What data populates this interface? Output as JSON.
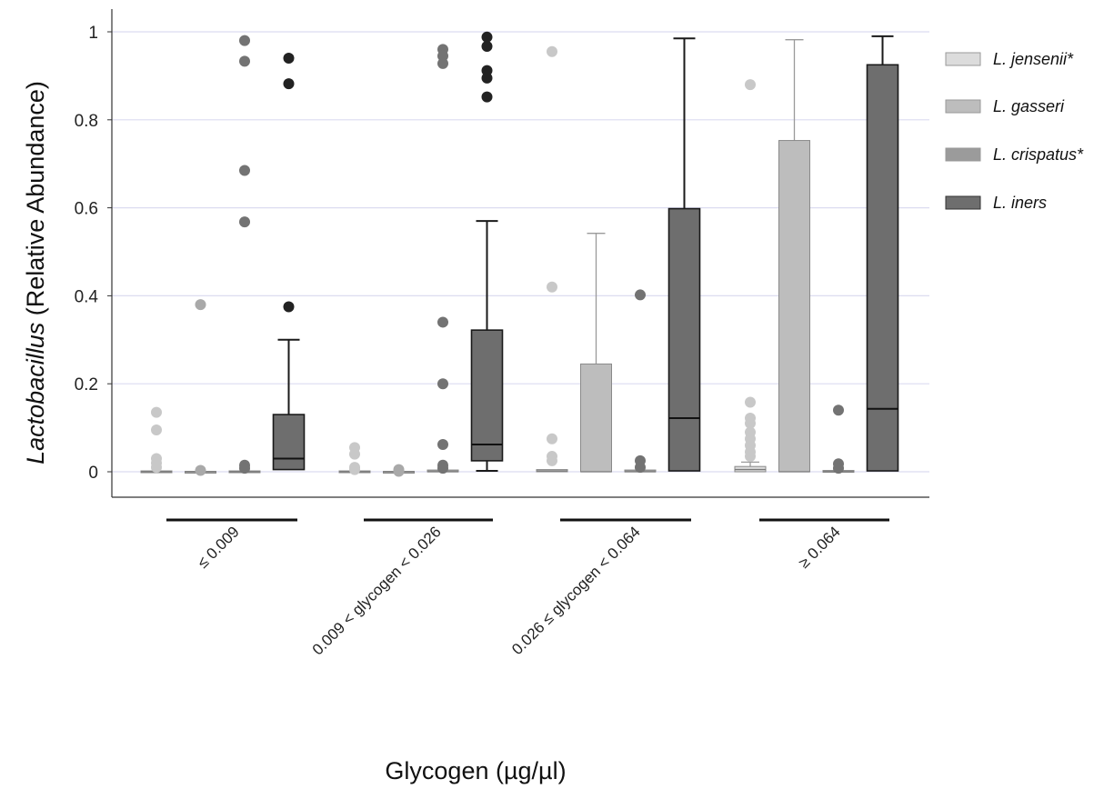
{
  "chart_data": {
    "type": "box",
    "ylabel_italic": "Lactobacillus",
    "ylabel_rest": " (Relative Abundance)",
    "xlabel": "Glycogen (µg/µl)",
    "ylim": [
      -0.05,
      1.05
    ],
    "yticks": [
      0,
      0.2,
      0.4,
      0.6,
      0.8,
      1
    ],
    "ytick_labels": [
      "0",
      "0.2",
      "0.4",
      "0.6",
      "0.8",
      "1"
    ],
    "grid": true,
    "legend_position": "right",
    "categories": [
      "≤ 0.009",
      "0.009 < glycogen < 0.026",
      "0.026 ≤ glycogen < 0.064",
      "≥ 0.064"
    ],
    "series": [
      {
        "name": "L. jensenii*",
        "color": "#dcdcdc",
        "outlier_color": "#c8c8c8",
        "boxes": [
          {
            "q1": 0,
            "median": 0,
            "q3": 0.002,
            "wlo": 0,
            "whi": 0.002,
            "outliers": [
              0.135,
              0.095,
              0.03,
              0.02,
              0.01
            ]
          },
          {
            "q1": 0,
            "median": 0,
            "q3": 0.002,
            "wlo": 0,
            "whi": 0.002,
            "outliers": [
              0.055,
              0.04,
              0.01,
              0.005
            ]
          },
          {
            "q1": 0,
            "median": 0.002,
            "q3": 0.005,
            "wlo": 0,
            "whi": 0.005,
            "outliers": [
              0.955,
              0.42,
              0.075,
              0.035,
              0.025
            ]
          },
          {
            "q1": 0,
            "median": 0.005,
            "q3": 0.012,
            "wlo": 0,
            "whi": 0.022,
            "outliers": [
              0.88,
              0.158,
              0.122,
              0.11,
              0.09,
              0.075,
              0.06,
              0.045,
              0.035
            ]
          }
        ]
      },
      {
        "name": "L. gasseri",
        "color": "#bdbdbd",
        "outlier_color": "#a9a9a9",
        "boxes": [
          {
            "q1": 0,
            "median": 0,
            "q3": 0.001,
            "wlo": 0,
            "whi": 0.001,
            "outliers": [
              0.38,
              0.003
            ]
          },
          {
            "q1": 0,
            "median": 0,
            "q3": 0.001,
            "wlo": 0,
            "whi": 0.001,
            "outliers": [
              0.005,
              0.001
            ]
          },
          {
            "q1": 0,
            "median": 0,
            "q3": 0.245,
            "wlo": 0,
            "whi": 0.542,
            "outliers": []
          },
          {
            "q1": 0,
            "median": 0,
            "q3": 0.753,
            "wlo": 0,
            "whi": 0.982,
            "outliers": []
          }
        ]
      },
      {
        "name": "L. crispatus*",
        "color": "#9b9b9b",
        "outlier_color": "#737373",
        "boxes": [
          {
            "q1": 0,
            "median": 0,
            "q3": 0.002,
            "wlo": 0,
            "whi": 0.002,
            "outliers": [
              0.98,
              0.933,
              0.685,
              0.568,
              0.015,
              0.008
            ]
          },
          {
            "q1": 0,
            "median": 0,
            "q3": 0.004,
            "wlo": 0,
            "whi": 0.004,
            "outliers": [
              0.96,
              0.945,
              0.928,
              0.34,
              0.2,
              0.062,
              0.015,
              0.008
            ]
          },
          {
            "q1": 0,
            "median": 0,
            "q3": 0.004,
            "wlo": 0,
            "whi": 0.004,
            "outliers": [
              0.402,
              0.025,
              0.01
            ]
          },
          {
            "q1": 0,
            "median": 0,
            "q3": 0.003,
            "wlo": 0,
            "whi": 0.003,
            "outliers": [
              0.14,
              0.018,
              0.008
            ]
          }
        ]
      },
      {
        "name": "L. iners",
        "color": "#6e6e6e",
        "outlier_color": "#222222",
        "boxes": [
          {
            "q1": 0.005,
            "median": 0.03,
            "q3": 0.13,
            "wlo": 0.005,
            "whi": 0.3,
            "outliers": [
              0.94,
              0.882,
              0.375
            ]
          },
          {
            "q1": 0.025,
            "median": 0.062,
            "q3": 0.322,
            "wlo": 0.002,
            "whi": 0.57,
            "outliers": [
              0.988,
              0.967,
              0.912,
              0.895,
              0.852
            ]
          },
          {
            "q1": 0.002,
            "median": 0.122,
            "q3": 0.598,
            "wlo": 0.002,
            "whi": 0.985,
            "outliers": []
          },
          {
            "q1": 0.002,
            "median": 0.143,
            "q3": 0.925,
            "wlo": 0.002,
            "whi": 0.99,
            "outliers": []
          }
        ]
      }
    ]
  }
}
